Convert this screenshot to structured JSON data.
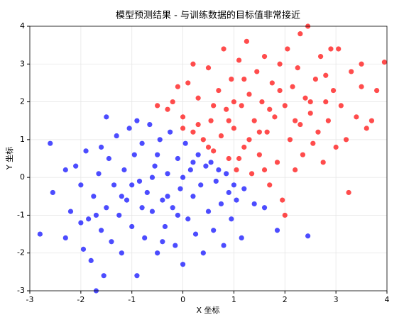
{
  "chart_data": {
    "type": "scatter",
    "title": "模型预测结果 - 与训练数据的目标值非常接近",
    "x_label": "X 坐标",
    "y_label": "Y 坐标",
    "xlim": [
      -3,
      4
    ],
    "ylim": [
      -3,
      4
    ],
    "xticks": [
      -3,
      -2,
      -1,
      0,
      1,
      2,
      3,
      4
    ],
    "yticks": [
      -3,
      -2,
      -1,
      0,
      1,
      2,
      3,
      4
    ],
    "grid": true,
    "series": [
      {
        "color": "#0000ff",
        "points": [
          [
            -2.8,
            -1.5
          ],
          [
            -2.6,
            0.9
          ],
          [
            -2.55,
            -0.4
          ],
          [
            -2.3,
            -1.6
          ],
          [
            -2.2,
            -0.9
          ],
          [
            -2.1,
            0.3
          ],
          [
            -2.0,
            -0.2
          ],
          [
            -1.95,
            -1.9
          ],
          [
            -1.9,
            0.7
          ],
          [
            -1.85,
            -1.1
          ],
          [
            -1.8,
            -2.2
          ],
          [
            -1.75,
            -0.5
          ],
          [
            -1.7,
            -3.0
          ],
          [
            -1.65,
            0.1
          ],
          [
            -1.6,
            -1.4
          ],
          [
            -1.55,
            -2.6
          ],
          [
            -1.5,
            -0.8
          ],
          [
            -1.45,
            0.5
          ],
          [
            -1.4,
            -1.7
          ],
          [
            -1.35,
            -0.2
          ],
          [
            -1.3,
            1.1
          ],
          [
            -1.25,
            -1.0
          ],
          [
            -1.2,
            -2.0
          ],
          [
            -1.15,
            0.2
          ],
          [
            -1.1,
            -0.6
          ],
          [
            -1.05,
            1.3
          ],
          [
            -1.0,
            -1.3
          ],
          [
            -0.95,
            0.6
          ],
          [
            -0.9,
            -2.6
          ],
          [
            -0.85,
            -0.1
          ],
          [
            -0.8,
            0.9
          ],
          [
            -0.75,
            -1.6
          ],
          [
            -0.7,
            -0.4
          ],
          [
            -0.65,
            1.4
          ],
          [
            -0.6,
            -0.9
          ],
          [
            -0.55,
            0.3
          ],
          [
            -0.5,
            -2.0
          ],
          [
            -0.45,
            1.0
          ],
          [
            -0.4,
            -0.6
          ],
          [
            -0.35,
            -1.3
          ],
          [
            -0.3,
            0.1
          ],
          [
            -0.25,
            1.2
          ],
          [
            -0.2,
            -0.8
          ],
          [
            -0.15,
            -1.8
          ],
          [
            -0.1,
            0.5
          ],
          [
            -0.05,
            -0.3
          ],
          [
            0.0,
            -2.3
          ],
          [
            0.05,
            0.9
          ],
          [
            0.1,
            -1.1
          ],
          [
            0.15,
            0.2
          ],
          [
            0.2,
            -0.5
          ],
          [
            0.25,
            -1.5
          ],
          [
            0.3,
            0.6
          ],
          [
            0.35,
            -0.2
          ],
          [
            0.4,
            -2.0
          ],
          [
            0.45,
            0.3
          ],
          [
            0.5,
            -0.9
          ],
          [
            0.55,
            0.4
          ],
          [
            0.6,
            -1.4
          ],
          [
            0.65,
            -0.1
          ],
          [
            0.7,
            0.2
          ],
          [
            0.75,
            -0.7
          ],
          [
            0.8,
            -1.8
          ],
          [
            0.85,
            0.1
          ],
          [
            0.9,
            -0.4
          ],
          [
            0.95,
            -1.1
          ],
          [
            1.0,
            -0.2
          ],
          [
            1.05,
            -0.6
          ],
          [
            1.15,
            -1.6
          ],
          [
            1.2,
            -0.3
          ],
          [
            1.4,
            -0.7
          ],
          [
            1.6,
            -0.8
          ],
          [
            1.85,
            -1.4
          ],
          [
            2.45,
            -1.55
          ],
          [
            -1.0,
            -0.2
          ],
          [
            -0.6,
            0.0
          ],
          [
            -0.3,
            -0.5
          ],
          [
            -0.8,
            -0.8
          ],
          [
            -1.2,
            -0.5
          ],
          [
            0.0,
            0.0
          ],
          [
            -0.5,
            0.6
          ],
          [
            0.2,
            0.4
          ],
          [
            -0.1,
            -1.0
          ],
          [
            -1.7,
            -1.0
          ],
          [
            -2.0,
            -1.2
          ],
          [
            -0.4,
            -1.7
          ],
          [
            -1.5,
            1.6
          ],
          [
            -0.9,
            1.5
          ],
          [
            -2.3,
            0.2
          ],
          [
            -1.6,
            0.8
          ]
        ]
      },
      {
        "color": "#ff0000",
        "points": [
          [
            -0.5,
            1.9
          ],
          [
            -0.3,
            1.8
          ],
          [
            -0.2,
            2.0
          ],
          [
            0.0,
            1.6
          ],
          [
            0.1,
            2.5
          ],
          [
            0.2,
            1.2
          ],
          [
            0.3,
            2.1
          ],
          [
            0.4,
            1.0
          ],
          [
            0.5,
            2.9
          ],
          [
            0.55,
            1.5
          ],
          [
            0.6,
            0.7
          ],
          [
            0.7,
            2.3
          ],
          [
            0.75,
            1.1
          ],
          [
            0.8,
            3.4
          ],
          [
            0.85,
            1.8
          ],
          [
            0.9,
            0.5
          ],
          [
            0.95,
            2.6
          ],
          [
            1.0,
            1.3
          ],
          [
            1.05,
            0.2
          ],
          [
            1.1,
            3.1
          ],
          [
            1.15,
            1.9
          ],
          [
            1.2,
            0.8
          ],
          [
            1.25,
            3.6
          ],
          [
            1.3,
            2.2
          ],
          [
            1.35,
            0.1
          ],
          [
            1.4,
            1.5
          ],
          [
            1.45,
            2.8
          ],
          [
            1.5,
            0.6
          ],
          [
            1.55,
            2.0
          ],
          [
            1.6,
            3.2
          ],
          [
            1.65,
            1.2
          ],
          [
            1.7,
            -0.2
          ],
          [
            1.75,
            2.5
          ],
          [
            1.8,
            1.6
          ],
          [
            1.85,
            0.4
          ],
          [
            1.9,
            3.0
          ],
          [
            1.95,
            -0.6
          ],
          [
            2.0,
            1.9
          ],
          [
            2.0,
            -1.0
          ],
          [
            2.05,
            3.4
          ],
          [
            2.1,
            1.0
          ],
          [
            2.15,
            2.4
          ],
          [
            2.2,
            0.2
          ],
          [
            2.25,
            2.9
          ],
          [
            2.3,
            1.4
          ],
          [
            2.35,
            0.6
          ],
          [
            2.4,
            2.1
          ],
          [
            2.45,
            4.0
          ],
          [
            2.5,
            1.7
          ],
          [
            2.55,
            0.9
          ],
          [
            2.6,
            2.6
          ],
          [
            2.65,
            1.2
          ],
          [
            2.7,
            3.2
          ],
          [
            2.75,
            0.4
          ],
          [
            2.8,
            2.0
          ],
          [
            2.85,
            1.5
          ],
          [
            2.9,
            3.4
          ],
          [
            2.95,
            2.3
          ],
          [
            3.0,
            0.8
          ],
          [
            3.05,
            3.4
          ],
          [
            3.1,
            1.9
          ],
          [
            3.2,
            1.0
          ],
          [
            3.25,
            -0.4
          ],
          [
            3.3,
            2.8
          ],
          [
            3.4,
            1.6
          ],
          [
            3.5,
            2.4
          ],
          [
            3.6,
            1.3
          ],
          [
            3.7,
            1.5
          ],
          [
            3.8,
            2.3
          ],
          [
            3.95,
            3.05
          ],
          [
            1.0,
            2.0
          ],
          [
            1.3,
            1.0
          ],
          [
            0.6,
            1.9
          ],
          [
            1.7,
            1.8
          ],
          [
            2.2,
            1.5
          ],
          [
            0.3,
            1.4
          ],
          [
            1.9,
            2.3
          ],
          [
            0.9,
            1.5
          ],
          [
            1.5,
            1.2
          ],
          [
            2.5,
            2.0
          ],
          [
            0.2,
            3.0
          ],
          [
            -0.1,
            2.4
          ],
          [
            1.2,
            2.6
          ],
          [
            2.8,
            2.7
          ],
          [
            1.6,
            0.2
          ],
          [
            0.5,
            0.8
          ],
          [
            2.3,
            3.8
          ],
          [
            3.5,
            3.0
          ],
          [
            0.0,
            1.3
          ],
          [
            1.1,
            0.5
          ]
        ]
      }
    ]
  }
}
